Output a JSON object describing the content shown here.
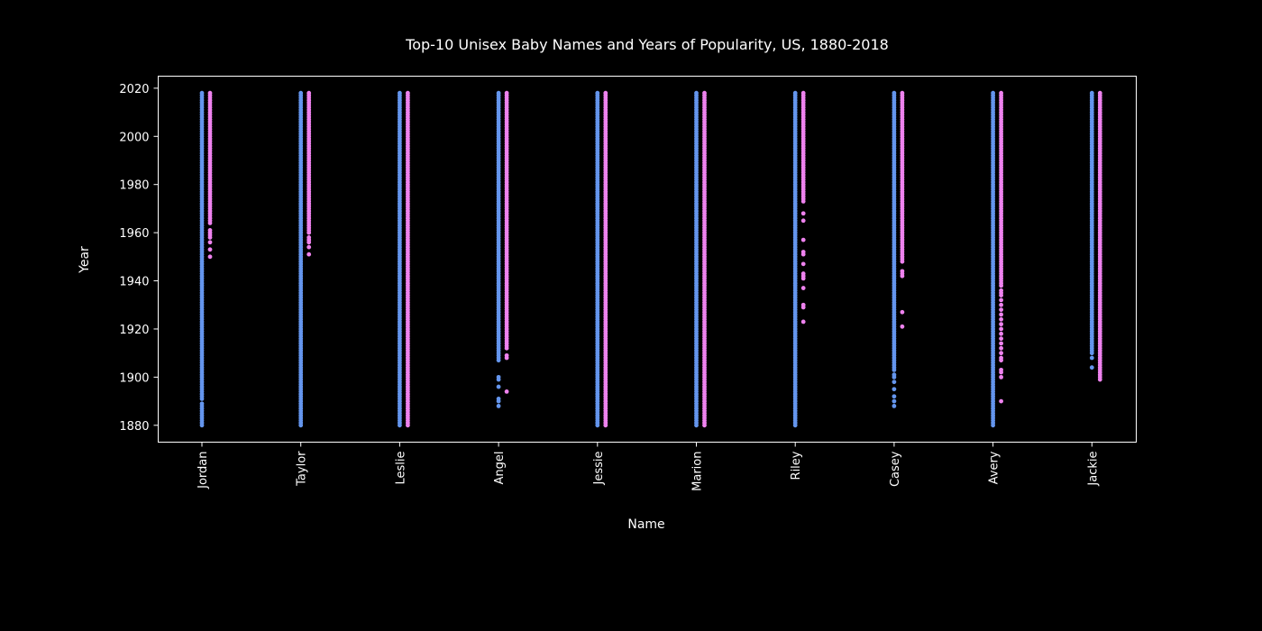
{
  "chart_data": {
    "type": "scatter",
    "title": "Top-10 Unisex Baby Names and Years of Popularity, US, 1880-2018",
    "xlabel": "Name",
    "ylabel": "Year",
    "categories": [
      "Jordan",
      "Taylor",
      "Leslie",
      "Angel",
      "Jessie",
      "Marion",
      "Riley",
      "Casey",
      "Avery",
      "Jackie"
    ],
    "ylim": [
      1873,
      2025
    ],
    "yticks": [
      1880,
      1900,
      1920,
      1940,
      1960,
      1980,
      2000,
      2020
    ],
    "grid": false,
    "series": [
      {
        "color": "#6495ed",
        "names": [
          {
            "ranges": [
              [
                1891,
                2018
              ]
            ],
            "points": [
              1880,
              1881,
              1882,
              1883,
              1884,
              1885,
              1886,
              1887,
              1888,
              1889
            ]
          },
          {
            "ranges": [
              [
                1880,
                2018
              ]
            ],
            "points": []
          },
          {
            "ranges": [
              [
                1880,
                2018
              ]
            ],
            "points": []
          },
          {
            "ranges": [
              [
                1907,
                2018
              ]
            ],
            "points": [
              1888,
              1890,
              1891,
              1896,
              1899,
              1900
            ]
          },
          {
            "ranges": [
              [
                1880,
                2018
              ]
            ],
            "points": []
          },
          {
            "ranges": [
              [
                1880,
                2018
              ]
            ],
            "points": []
          },
          {
            "ranges": [
              [
                1880,
                2018
              ]
            ],
            "points": []
          },
          {
            "ranges": [
              [
                1903,
                2018
              ]
            ],
            "points": [
              1888,
              1890,
              1892,
              1895,
              1898,
              1900,
              1901
            ]
          },
          {
            "ranges": [
              [
                1880,
                2018
              ]
            ],
            "points": []
          },
          {
            "ranges": [
              [
                1910,
                2018
              ]
            ],
            "points": [
              1904,
              1908
            ]
          }
        ]
      },
      {
        "color": "#ee82ee",
        "names": [
          {
            "ranges": [
              [
                1964,
                2018
              ]
            ],
            "points": [
              1950,
              1953,
              1956,
              1958,
              1959,
              1960,
              1961
            ]
          },
          {
            "ranges": [
              [
                1960,
                2018
              ]
            ],
            "points": [
              1951,
              1954,
              1956,
              1957,
              1958
            ]
          },
          {
            "ranges": [
              [
                1880,
                2018
              ]
            ],
            "points": []
          },
          {
            "ranges": [
              [
                1912,
                2018
              ]
            ],
            "points": [
              1894,
              1908,
              1909
            ]
          },
          {
            "ranges": [
              [
                1880,
                2018
              ]
            ],
            "points": []
          },
          {
            "ranges": [
              [
                1880,
                2018
              ]
            ],
            "points": []
          },
          {
            "ranges": [
              [
                1973,
                2018
              ]
            ],
            "points": [
              1923,
              1929,
              1930,
              1937,
              1941,
              1942,
              1943,
              1947,
              1951,
              1952,
              1957,
              1965,
              1968
            ]
          },
          {
            "ranges": [
              [
                1948,
                2018
              ]
            ],
            "points": [
              1921,
              1927,
              1942,
              1943,
              1944
            ]
          },
          {
            "ranges": [
              [
                1938,
                2018
              ]
            ],
            "points": [
              1890,
              1900,
              1902,
              1903,
              1907,
              1908,
              1910,
              1912,
              1914,
              1916,
              1918,
              1920,
              1922,
              1924,
              1926,
              1928,
              1930,
              1932,
              1934,
              1935,
              1936
            ]
          },
          {
            "ranges": [
              [
                1899,
                2018
              ]
            ],
            "points": []
          }
        ]
      }
    ]
  }
}
